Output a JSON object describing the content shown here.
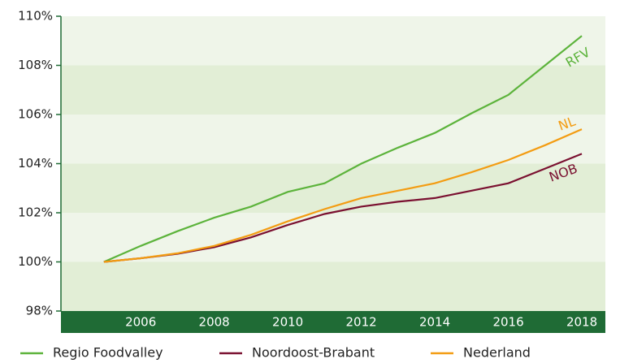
{
  "chart_data": {
    "type": "line",
    "x": [
      2005,
      2006,
      2007,
      2008,
      2009,
      2010,
      2011,
      2012,
      2013,
      2014,
      2015,
      2016,
      2017,
      2018
    ],
    "series": [
      {
        "name": "Regio Foodvalley",
        "color": "#5cb33b",
        "values": [
          100,
          100.65,
          101.25,
          101.8,
          102.25,
          102.85,
          103.2,
          104.0,
          104.65,
          105.25,
          106.05,
          106.8,
          108.0,
          109.2
        ]
      },
      {
        "name": "Noordoost-Brabant",
        "color": "#7a1030",
        "values": [
          100,
          100.15,
          100.33,
          100.6,
          101.0,
          101.5,
          101.95,
          102.25,
          102.45,
          102.6,
          102.9,
          103.2,
          103.8,
          104.4
        ]
      },
      {
        "name": "Nederland",
        "color": "#f39c12",
        "values": [
          100,
          100.15,
          100.35,
          100.65,
          101.1,
          101.65,
          102.15,
          102.6,
          102.9,
          103.2,
          103.65,
          104.15,
          104.75,
          105.4
        ]
      }
    ],
    "annotations": [
      {
        "text": "RFV",
        "x": 2017.9,
        "y": 108.3,
        "color": "#5cb33b",
        "rotate": -30
      },
      {
        "text": "NL",
        "x": 2017.6,
        "y": 105.6,
        "color": "#f39c12",
        "rotate": -20
      },
      {
        "text": "NOB",
        "x": 2017.5,
        "y": 103.6,
        "color": "#7a1030",
        "rotate": -20
      }
    ],
    "xlim": [
      2003.83,
      2018.64
    ],
    "xticks": [
      2006,
      2008,
      2010,
      2012,
      2014,
      2016,
      2018
    ],
    "ylim": [
      98,
      110
    ],
    "yticks": [
      {
        "value": 98,
        "label": "98%"
      },
      {
        "value": 100,
        "label": "100%"
      },
      {
        "value": 102,
        "label": "102%"
      },
      {
        "value": 104,
        "label": "104%"
      },
      {
        "value": 106,
        "label": "106%"
      },
      {
        "value": 108,
        "label": "108%"
      },
      {
        "value": 110,
        "label": "110%"
      }
    ],
    "grid": true,
    "legend": "bottom"
  }
}
